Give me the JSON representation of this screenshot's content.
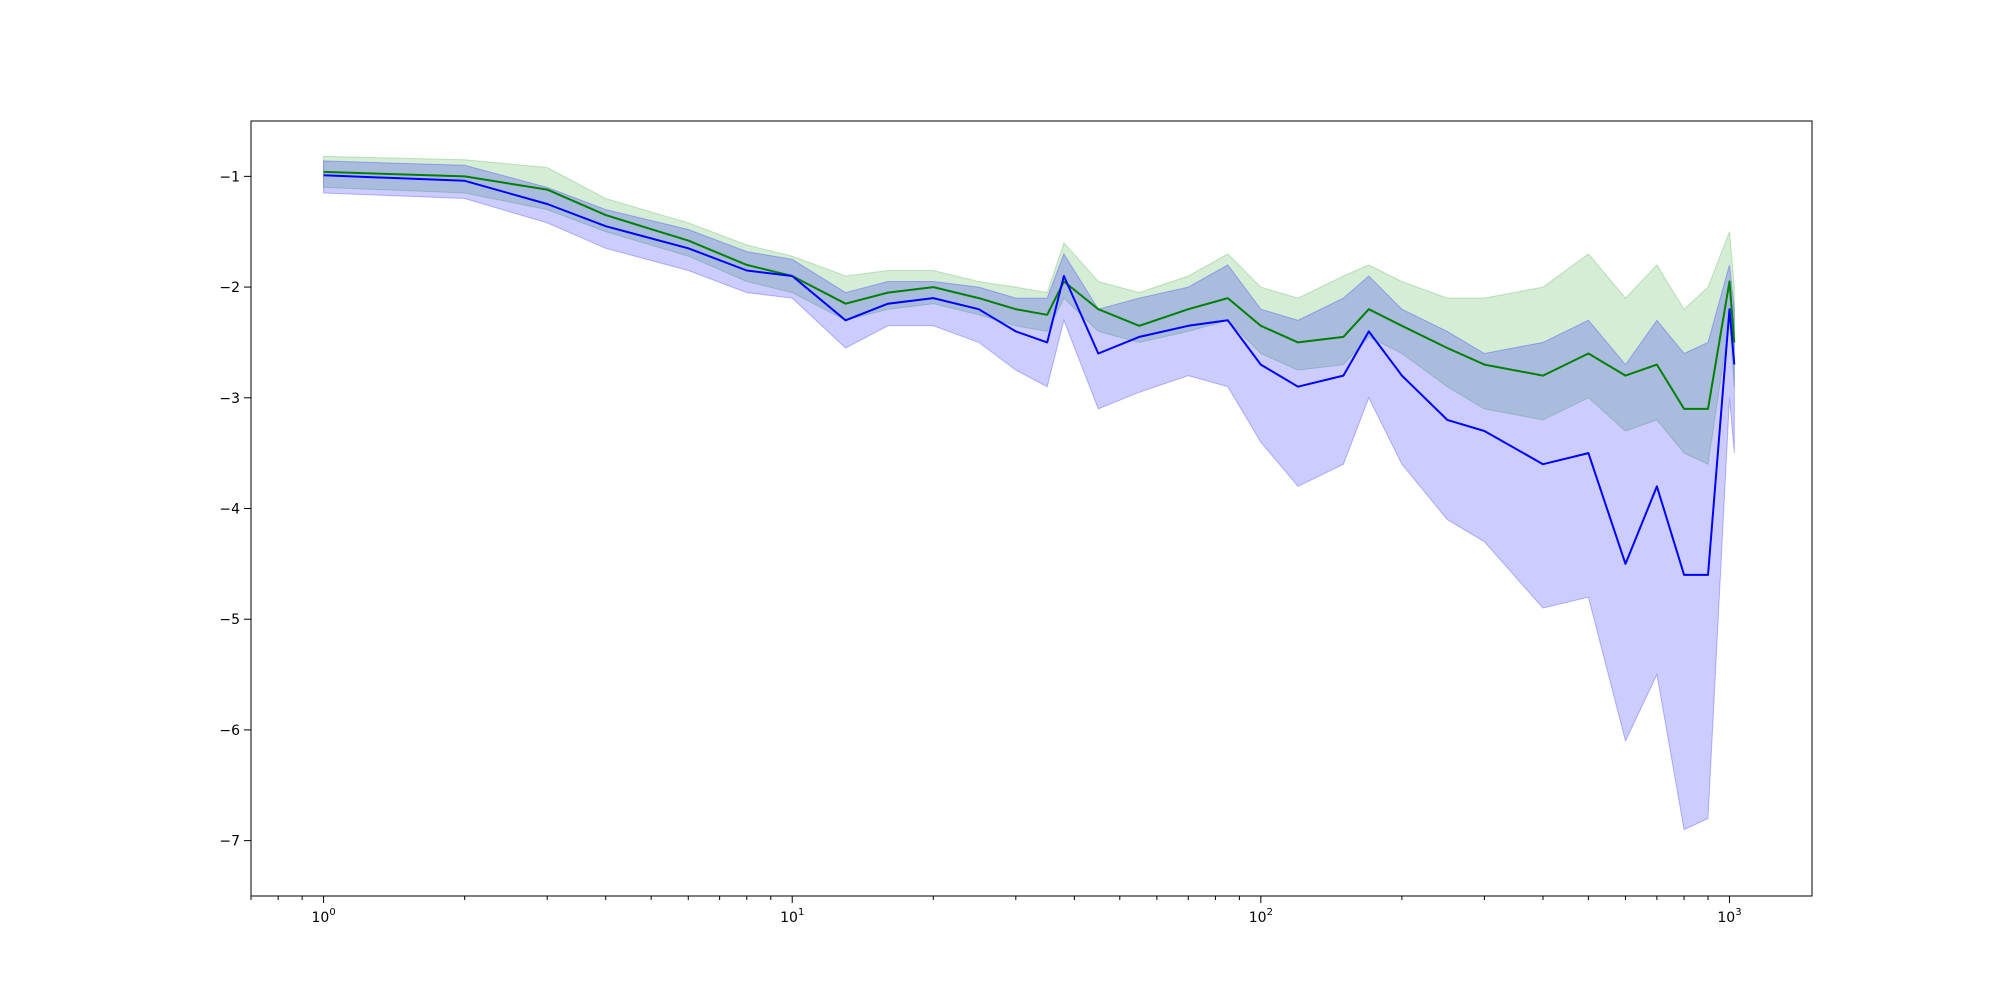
{
  "chart_data": {
    "type": "line",
    "title": "",
    "xlabel": "",
    "ylabel": "",
    "xscale": "log",
    "xlim": [
      0.7,
      1500
    ],
    "ylim": [
      -7.5,
      -0.5
    ],
    "grid": false,
    "x_ticks": [
      {
        "value": 1,
        "base": "10",
        "exp": "0"
      },
      {
        "value": 10,
        "base": "10",
        "exp": "1"
      },
      {
        "value": 100,
        "base": "10",
        "exp": "2"
      },
      {
        "value": 1000,
        "base": "10",
        "exp": "3"
      }
    ],
    "y_ticks": [
      {
        "value": -1,
        "label": "−1"
      },
      {
        "value": -2,
        "label": "−2"
      },
      {
        "value": -3,
        "label": "−3"
      },
      {
        "value": -4,
        "label": "−4"
      },
      {
        "value": -5,
        "label": "−5"
      },
      {
        "value": -6,
        "label": "−6"
      },
      {
        "value": -7,
        "label": "−7"
      }
    ],
    "series": [
      {
        "color": "#008000",
        "band_color": "#2ca02c",
        "x": [
          1,
          2,
          3,
          4,
          6,
          8,
          10,
          13,
          16,
          20,
          25,
          30,
          35,
          38,
          45,
          55,
          70,
          85,
          100,
          120,
          150,
          170,
          200,
          250,
          300,
          400,
          500,
          600,
          700,
          800,
          900,
          1000,
          1024
        ],
        "y": [
          -0.96,
          -1.0,
          -1.12,
          -1.35,
          -1.58,
          -1.8,
          -1.9,
          -2.15,
          -2.05,
          -2.0,
          -2.1,
          -2.2,
          -2.25,
          -1.95,
          -2.2,
          -2.35,
          -2.2,
          -2.1,
          -2.35,
          -2.5,
          -2.45,
          -2.2,
          -2.35,
          -2.55,
          -2.7,
          -2.8,
          -2.6,
          -2.8,
          -2.7,
          -3.1,
          -3.1,
          -1.95,
          -2.5
        ],
        "lower": [
          -1.1,
          -1.15,
          -1.3,
          -1.5,
          -1.72,
          -1.95,
          -2.05,
          -2.3,
          -2.2,
          -2.15,
          -2.25,
          -2.35,
          -2.4,
          -2.1,
          -2.4,
          -2.5,
          -2.4,
          -2.3,
          -2.6,
          -2.75,
          -2.7,
          -2.45,
          -2.6,
          -2.9,
          -3.1,
          -3.2,
          -3.0,
          -3.3,
          -3.2,
          -3.5,
          -3.6,
          -2.3,
          -2.9
        ],
        "upper": [
          -0.82,
          -0.85,
          -0.92,
          -1.2,
          -1.42,
          -1.62,
          -1.72,
          -1.9,
          -1.85,
          -1.85,
          -1.95,
          -2.0,
          -2.05,
          -1.6,
          -1.95,
          -2.05,
          -1.9,
          -1.7,
          -2.0,
          -2.1,
          -1.9,
          -1.8,
          -1.95,
          -2.1,
          -2.1,
          -2.0,
          -1.7,
          -2.1,
          -1.8,
          -2.2,
          -2.0,
          -1.5,
          -2.0
        ]
      },
      {
        "color": "#0000ff",
        "band_color": "#0000ff",
        "x": [
          1,
          2,
          3,
          4,
          6,
          8,
          10,
          13,
          16,
          20,
          25,
          30,
          35,
          38,
          45,
          55,
          70,
          85,
          100,
          120,
          150,
          170,
          200,
          250,
          300,
          400,
          500,
          600,
          700,
          800,
          900,
          1000,
          1024
        ],
        "y": [
          -0.99,
          -1.04,
          -1.25,
          -1.45,
          -1.65,
          -1.85,
          -1.9,
          -2.3,
          -2.15,
          -2.1,
          -2.2,
          -2.4,
          -2.5,
          -1.9,
          -2.6,
          -2.45,
          -2.35,
          -2.3,
          -2.7,
          -2.9,
          -2.8,
          -2.4,
          -2.8,
          -3.2,
          -3.3,
          -3.6,
          -3.5,
          -4.5,
          -3.8,
          -4.6,
          -4.6,
          -2.2,
          -2.7
        ],
        "lower": [
          -1.15,
          -1.2,
          -1.42,
          -1.65,
          -1.85,
          -2.05,
          -2.1,
          -2.55,
          -2.35,
          -2.35,
          -2.5,
          -2.75,
          -2.9,
          -2.3,
          -3.1,
          -2.95,
          -2.8,
          -2.9,
          -3.4,
          -3.8,
          -3.6,
          -3.0,
          -3.6,
          -4.1,
          -4.3,
          -4.9,
          -4.8,
          -6.1,
          -5.5,
          -6.9,
          -6.8,
          -3.0,
          -3.5
        ],
        "upper": [
          -0.86,
          -0.9,
          -1.1,
          -1.3,
          -1.48,
          -1.68,
          -1.75,
          -2.05,
          -1.95,
          -1.95,
          -2.0,
          -2.1,
          -2.1,
          -1.7,
          -2.2,
          -2.1,
          -2.0,
          -1.8,
          -2.2,
          -2.3,
          -2.1,
          -1.9,
          -2.2,
          -2.4,
          -2.6,
          -2.5,
          -2.3,
          -2.7,
          -2.3,
          -2.6,
          -2.5,
          -1.8,
          -2.2
        ]
      }
    ]
  }
}
